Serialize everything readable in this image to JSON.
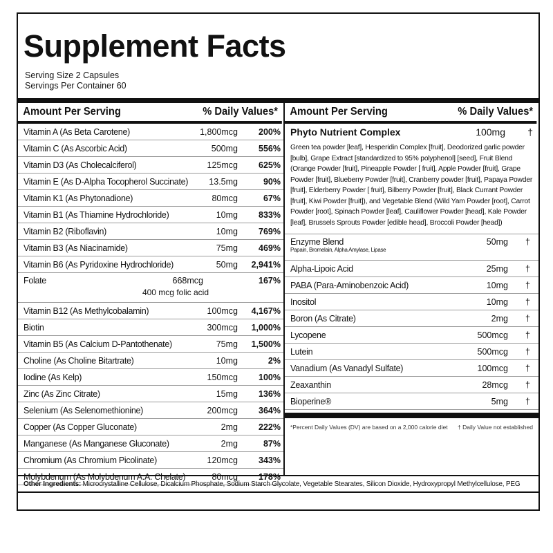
{
  "title": "Supplement Facts",
  "serving_size": "Serving Size 2 Capsules",
  "servings_per_container": "Servings Per Container 60",
  "left_header": {
    "amount": "Amount Per Serving",
    "dv": "% Daily Values*"
  },
  "right_header": {
    "amount": "Amount Per Serving",
    "dv": "% Daily Values*"
  },
  "left_rows": [
    {
      "name": "Vitamin A (As Beta Carotene)",
      "amount": "1,800mcg",
      "dv": "200%"
    },
    {
      "name": "Vitamin C (As Ascorbic Acid)",
      "amount": "500mg",
      "dv": "556%"
    },
    {
      "name": "Vitamin D3 (As Cholecalciferol)",
      "amount": "125mcg",
      "dv": "625%"
    },
    {
      "name": "Vitamin E (As D-Alpha Tocopherol Succinate)",
      "amount": "13.5mg",
      "dv": "90%"
    },
    {
      "name": "Vitamin K1 (As Phytonadione)",
      "amount": "80mcg",
      "dv": "67%"
    },
    {
      "name": "Vitamin B1 (As Thiamine Hydrochloride)",
      "amount": "10mg",
      "dv": "833%"
    },
    {
      "name": "Vitamin B2 (Riboflavin)",
      "amount": "10mg",
      "dv": "769%"
    },
    {
      "name": "Vitamin B3 (As Niacinamide)",
      "amount": "75mg",
      "dv": "469%"
    },
    {
      "name": "Vitamin B6 (As Pyridoxine Hydrochloride)",
      "amount": "50mg",
      "dv": "2,941%"
    },
    {
      "name": "Folate",
      "amount": "668mcg",
      "dv": "167%",
      "sub": "400 mcg folic acid"
    },
    {
      "name": "Vitamin B12 (As Methylcobalamin)",
      "amount": "100mcg",
      "dv": "4,167%"
    },
    {
      "name": "Biotin",
      "amount": "300mcg",
      "dv": "1,000%"
    },
    {
      "name": "Vitamin B5 (As Calcium D-Pantothenate)",
      "amount": "75mg",
      "dv": "1,500%"
    },
    {
      "name": "Choline (As Choline Bitartrate)",
      "amount": "10mg",
      "dv": "2%"
    },
    {
      "name": "Iodine (As Kelp)",
      "amount": "150mcg",
      "dv": "100%"
    },
    {
      "name": "Zinc (As Zinc Citrate)",
      "amount": "15mg",
      "dv": "136%"
    },
    {
      "name": "Selenium (As Selenomethionine)",
      "amount": "200mcg",
      "dv": "364%"
    },
    {
      "name": "Copper (As Copper Gluconate)",
      "amount": "2mg",
      "dv": "222%"
    },
    {
      "name": "Manganese (As Manganese Gluconate)",
      "amount": "2mg",
      "dv": "87%"
    },
    {
      "name": "Chromium (As Chromium Picolinate)",
      "amount": "120mcg",
      "dv": "343%"
    },
    {
      "name": "Molybdenum (As Molybdenum A.A. Chelate)",
      "amount": "80mcg",
      "dv": "178%"
    }
  ],
  "phyto": {
    "name": "Phyto Nutrient Complex",
    "amount": "100mg",
    "dv": "†",
    "desc": "Green tea powder [leaf], Hesperidin Complex [fruit], Deodorized garlic powder [bulb], Grape Extract [standardized to 95% polyphenol] [seed], Fruit Blend (Orange Powder [fruit], Pineapple Powder [ fruit], Apple Powder [fruit], Grape Powder [fruit], Blueberry Powder [fruit], Cranberry powder [fruit], Papaya Powder [fruit], Elderberry Powder [ fruit], Bilberry Powder [fruit], Black Currant Powder [fruit], Kiwi Powder [fruit]), and Vegetable Blend (Wild Yam Powder [root], Carrot Powder [root], Spinach Powder [leaf], Cauliflower Powder [head], Kale Powder [leaf], Brussels Sprouts Powder [edible head], Broccoli Powder [head])"
  },
  "enzyme": {
    "name": "Enzyme Blend",
    "sub": "Papain, Bromelain, Alpha Amylase, Lipase",
    "amount": "50mg",
    "dv": "†"
  },
  "right_rows": [
    {
      "name": "Alpha-Lipoic Acid",
      "amount": "25mg",
      "dv": "†"
    },
    {
      "name": "PABA (Para-Aminobenzoic Acid)",
      "amount": "10mg",
      "dv": "†"
    },
    {
      "name": "Inositol",
      "amount": "10mg",
      "dv": "†"
    },
    {
      "name": "Boron (As Citrate)",
      "amount": "2mg",
      "dv": "†"
    },
    {
      "name": "Lycopene",
      "amount": "500mcg",
      "dv": "†"
    },
    {
      "name": "Lutein",
      "amount": "500mcg",
      "dv": "†"
    },
    {
      "name": "Vanadium (As Vanadyl Sulfate)",
      "amount": "100mcg",
      "dv": "†"
    },
    {
      "name": "Zeaxanthin",
      "amount": "28mcg",
      "dv": "†"
    },
    {
      "name": "Bioperine®",
      "amount": "5mg",
      "dv": "†"
    }
  ],
  "footnote_dv": "*Percent Daily Values (DV) are based on a 2,000 calorie diet",
  "footnote_dagger": "† Daily Value not established",
  "other_label": "Other Ingredients:",
  "other_text": " Microcrystalline Cellulose, Dicalcium Phosphate, Sodium Starch Glycolate, Vegetable Stearates, Silicon Dioxide, Hydroxypropyl Methylcellulose, PEG"
}
